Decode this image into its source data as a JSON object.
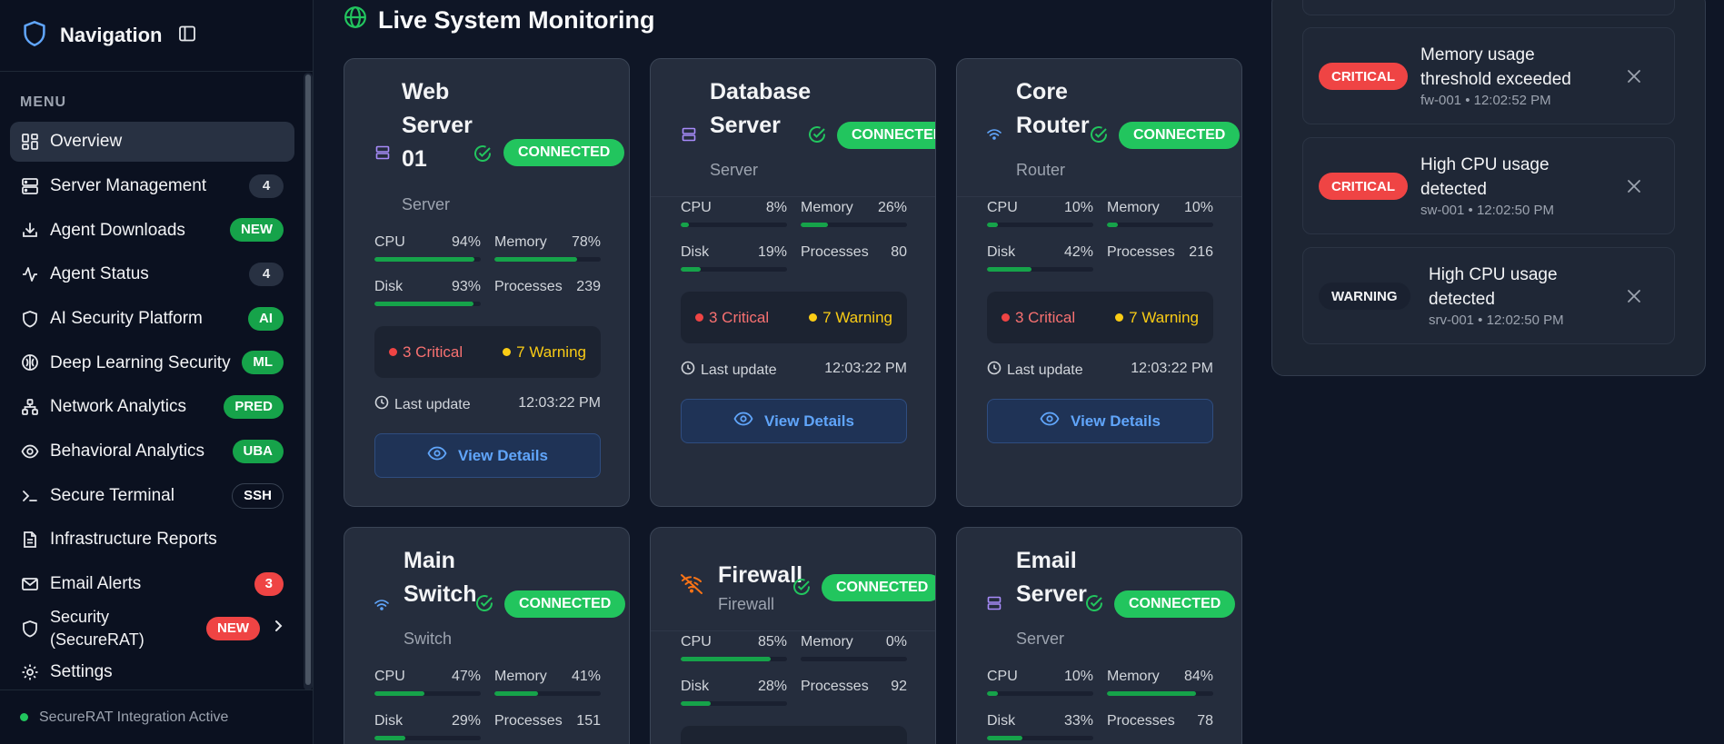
{
  "sidebar": {
    "title": "Navigation",
    "menu_label": "MENU",
    "items": [
      {
        "label": "Overview",
        "icon": "grid-icon",
        "badge": ""
      },
      {
        "label": "Server Management",
        "icon": "server-icon",
        "badge": "4"
      },
      {
        "label": "Agent Downloads",
        "icon": "download-icon",
        "badge": "NEW"
      },
      {
        "label": "Agent Status",
        "icon": "activity-icon",
        "badge": "4"
      },
      {
        "label": "AI Security Platform",
        "icon": "shield-icon",
        "badge": "AI"
      },
      {
        "label": "Deep Learning Security",
        "icon": "brain-icon",
        "badge": "ML"
      },
      {
        "label": "Network Analytics",
        "icon": "network-icon",
        "badge": "PRED"
      },
      {
        "label": "Behavioral Analytics",
        "icon": "eye-icon",
        "badge": "UBA"
      },
      {
        "label": "Secure Terminal",
        "icon": "terminal-icon",
        "badge": "SSH"
      },
      {
        "label": "Infrastructure Reports",
        "icon": "file-icon",
        "badge": ""
      },
      {
        "label": "Email Alerts",
        "icon": "mail-icon",
        "badge": "3"
      },
      {
        "label": "Security\n(SecureRAT)",
        "icon": "shield-icon",
        "badge": "NEW"
      },
      {
        "label": "Settings",
        "icon": "gear-icon",
        "badge": ""
      }
    ],
    "footer": "SecureRAT Integration Active"
  },
  "main": {
    "title": "Live System Monitoring",
    "common": {
      "status": "CONNECTED",
      "cpu_label": "CPU",
      "memory_label": "Memory",
      "disk_label": "Disk",
      "processes_label": "Processes",
      "last_update_label": "Last update",
      "view_details": "View Details"
    },
    "cards": [
      {
        "name": "Web Server 01",
        "type": "Server",
        "cpu": "94%",
        "memory": "78%",
        "disk": "93%",
        "processes": "239",
        "critical": "3 Critical",
        "warning": "7 Warning",
        "last_update": "12:03:22 PM",
        "cpu_pct": 94,
        "memory_pct": 78,
        "disk_pct": 93
      },
      {
        "name": "Database Server",
        "type": "Server",
        "cpu": "8%",
        "memory": "26%",
        "disk": "19%",
        "processes": "80",
        "critical": "3 Critical",
        "warning": "7 Warning",
        "last_update": "12:03:22 PM",
        "cpu_pct": 8,
        "memory_pct": 26,
        "disk_pct": 19
      },
      {
        "name": "Core Router",
        "type": "Router",
        "cpu": "10%",
        "memory": "10%",
        "disk": "42%",
        "processes": "216",
        "critical": "3 Critical",
        "warning": "7 Warning",
        "last_update": "12:03:22 PM",
        "cpu_pct": 10,
        "memory_pct": 10,
        "disk_pct": 42
      },
      {
        "name": "Main Switch",
        "type": "Switch",
        "cpu": "47%",
        "memory": "41%",
        "disk": "29%",
        "processes": "151",
        "cpu_pct": 47,
        "memory_pct": 41,
        "disk_pct": 29
      },
      {
        "name": "Firewall",
        "type": "Firewall",
        "cpu": "85%",
        "memory": "0%",
        "disk": "28%",
        "processes": "92",
        "cpu_pct": 85,
        "memory_pct": 0,
        "disk_pct": 28
      },
      {
        "name": "Email Server",
        "type": "Server",
        "cpu": "10%",
        "memory": "84%",
        "disk": "33%",
        "processes": "78",
        "cpu_pct": 10,
        "memory_pct": 84,
        "disk_pct": 33
      }
    ]
  },
  "alerts": [
    {
      "severity": "CRITICAL",
      "message": "Memory usage threshold exceeded",
      "meta": "fw-001 • 12:02:52 PM"
    },
    {
      "severity": "CRITICAL",
      "message": "High CPU usage detected",
      "meta": "sw-001 • 12:02:50 PM"
    },
    {
      "severity": "WARNING",
      "message": "High CPU usage detected",
      "meta": "srv-001 • 12:02:50 PM"
    }
  ],
  "colors": {
    "accent": "#22c55e",
    "critical": "#ef4444",
    "warning": "#facc15",
    "link": "#60a5fa",
    "server_icon": "#a78bfa",
    "router_icon": "#60a5fa",
    "firewall_icon": "#f97316"
  }
}
